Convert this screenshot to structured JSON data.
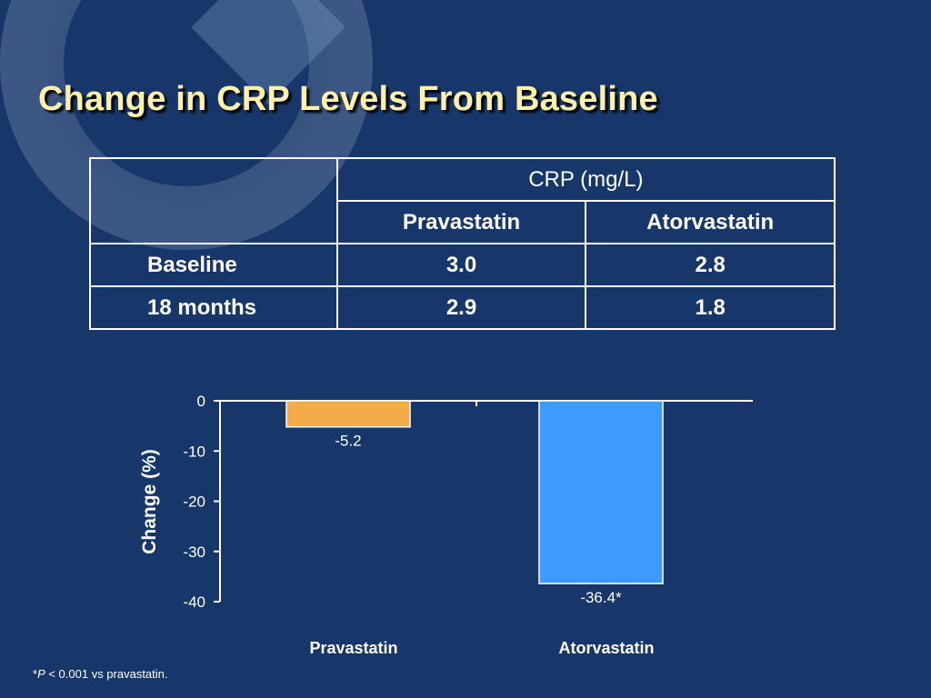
{
  "slide": {
    "title": "Change in CRP Levels From Baseline",
    "footnote_star": "*",
    "footnote_p": "P",
    "footnote_rest": " < 0.001 vs pravastatin."
  },
  "table": {
    "group_header": "CRP (mg/L)",
    "columns": [
      "Pravastatin",
      "Atorvastatin"
    ],
    "rows": [
      {
        "label": "Baseline",
        "values": [
          "3.0",
          "2.8"
        ]
      },
      {
        "label": "18 months",
        "values": [
          "2.9",
          "1.8"
        ]
      }
    ]
  },
  "chart_data": {
    "type": "bar",
    "categories": [
      "Pravastatin",
      "Atorvastatin"
    ],
    "values": [
      -5.2,
      -36.4
    ],
    "data_labels": [
      "-5.2",
      "-36.4*"
    ],
    "title": "",
    "xlabel": "",
    "ylabel": "Change (%)",
    "ylim": [
      -40,
      0
    ],
    "yticks": [
      0,
      -10,
      -20,
      -30,
      -40
    ],
    "colors": [
      "#f4ac4a",
      "#3d9bff"
    ],
    "grid": false,
    "legend": "none"
  },
  "colors": {
    "background": "#17376b",
    "title": "#fff2a8"
  }
}
